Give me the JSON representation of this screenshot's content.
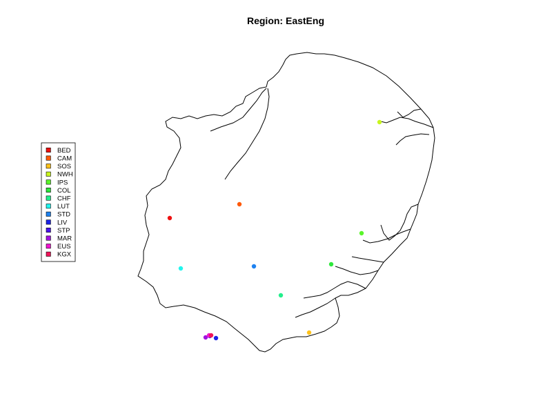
{
  "title": "Region: EastEng",
  "legend": [
    {
      "code": "BED",
      "color": "#ee1111"
    },
    {
      "code": "CAM",
      "color": "#ff5a0a"
    },
    {
      "code": "SOS",
      "color": "#ffc21a"
    },
    {
      "code": "NWH",
      "color": "#c8f51e"
    },
    {
      "code": "IPS",
      "color": "#5af52a"
    },
    {
      "code": "COL",
      "color": "#2ee83c"
    },
    {
      "code": "CHF",
      "color": "#23ee8c"
    },
    {
      "code": "LUT",
      "color": "#22f5ee"
    },
    {
      "code": "STD",
      "color": "#1e82f0"
    },
    {
      "code": "LIV",
      "color": "#1a22e8"
    },
    {
      "code": "STP",
      "color": "#4a14ee"
    },
    {
      "code": "MAR",
      "color": "#a014e0"
    },
    {
      "code": "EUS",
      "color": "#f014d0"
    },
    {
      "code": "KGX",
      "color": "#f0145a"
    }
  ],
  "stations": [
    {
      "code": "BED",
      "color": "#ee1111"
    },
    {
      "code": "CAM",
      "color": "#ff5a0a"
    },
    {
      "code": "SOS",
      "color": "#ffc21a"
    },
    {
      "code": "NWH",
      "color": "#c8f51e"
    },
    {
      "code": "IPS",
      "color": "#5af52a"
    },
    {
      "code": "COL",
      "color": "#2ee83c"
    },
    {
      "code": "CHF",
      "color": "#23ee8c"
    },
    {
      "code": "LUT",
      "color": "#22f5ee"
    },
    {
      "code": "STD",
      "color": "#1e82f0"
    },
    {
      "code": "LIV",
      "color": "#1a22e8"
    },
    {
      "code": "STP",
      "color": "#4a14ee"
    },
    {
      "code": "MAR",
      "color": "#a014e0"
    },
    {
      "code": "EUS",
      "color": "#f014d0"
    },
    {
      "code": "KGX",
      "color": "#f0145a"
    }
  ]
}
